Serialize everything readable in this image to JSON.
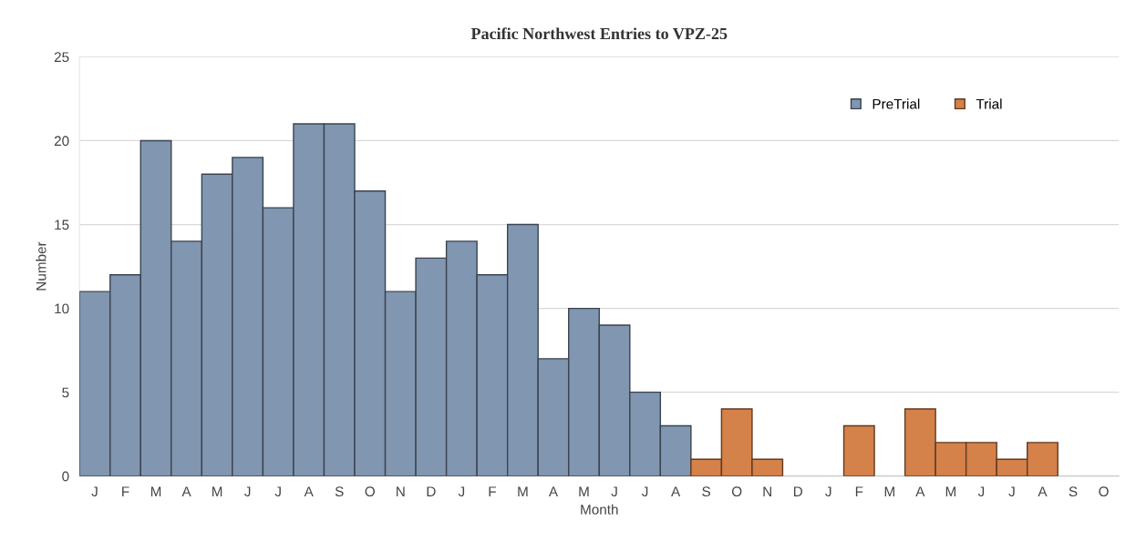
{
  "chart_data": {
    "type": "bar",
    "title": "Pacific Northwest Entries to VPZ-25",
    "xlabel": "Month",
    "ylabel": "Number",
    "categories": [
      "J",
      "F",
      "M",
      "A",
      "M",
      "J",
      "J",
      "A",
      "S",
      "O",
      "N",
      "D",
      "J",
      "F",
      "M",
      "A",
      "M",
      "J",
      "J",
      "A",
      "S",
      "O",
      "N",
      "D",
      "J",
      "F",
      "M",
      "A",
      "M",
      "J",
      "J",
      "A",
      "S",
      "O"
    ],
    "series": [
      {
        "name": "PreTrial",
        "color": "#8196b0",
        "values": [
          11,
          12,
          20,
          14,
          18,
          19,
          16,
          21,
          21,
          17,
          11,
          13,
          14,
          12,
          15,
          7,
          10,
          9,
          5,
          3,
          null,
          null,
          null,
          null,
          null,
          null,
          null,
          null,
          null,
          null,
          null,
          null,
          null,
          null
        ]
      },
      {
        "name": "Trial",
        "color": "#d4814a",
        "values": [
          null,
          null,
          null,
          null,
          null,
          null,
          null,
          null,
          null,
          null,
          null,
          null,
          null,
          null,
          null,
          null,
          null,
          null,
          null,
          null,
          1,
          4,
          1,
          0,
          0,
          3,
          0,
          4,
          2,
          2,
          1,
          2,
          0,
          0
        ]
      }
    ],
    "ylim": [
      0,
      25
    ],
    "yticks": [
      0,
      5,
      10,
      15,
      20,
      25
    ],
    "grid": "y",
    "legend": "top right"
  }
}
